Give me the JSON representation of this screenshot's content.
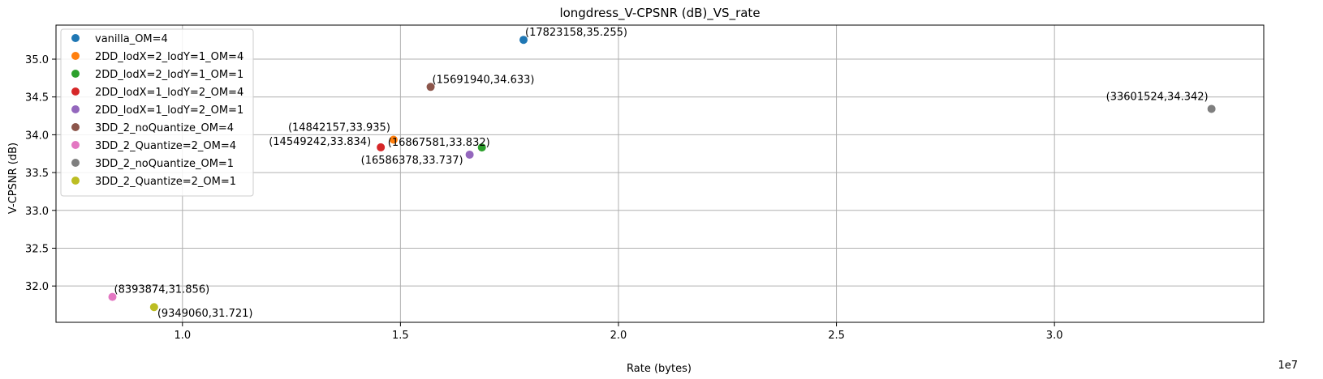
{
  "chart_data": {
    "type": "scatter",
    "title": "longdress_V-CPSNR (dB)_VS_rate",
    "xlabel": "Rate (bytes)",
    "ylabel": "V-CPSNR (dB)",
    "x_offset_label": "1e7",
    "xlim": [
      7100000,
      34800000
    ],
    "ylim": [
      31.52,
      35.45
    ],
    "grid": true,
    "legend_position": "upper-left",
    "x_ticks": [
      10000000,
      15000000,
      20000000,
      25000000,
      30000000
    ],
    "x_tick_labels": [
      "1.0",
      "1.5",
      "2.0",
      "2.5",
      "3.0"
    ],
    "y_ticks": [
      32.0,
      32.5,
      33.0,
      33.5,
      34.0,
      34.5,
      35.0
    ],
    "y_tick_labels": [
      "32.0",
      "32.5",
      "33.0",
      "33.5",
      "34.0",
      "34.5",
      "35.0"
    ],
    "series": [
      {
        "name": "vanilla_OM=4",
        "color": "#1f77b4",
        "x": 17823158,
        "y": 35.255,
        "annotation": "(17823158,35.255)",
        "ann_pos": "above-right"
      },
      {
        "name": "2DD_lodX=2_lodY=1_OM=4",
        "color": "#ff7f0e",
        "x": 14842157,
        "y": 33.935,
        "annotation": "(14842157,33.935)",
        "ann_pos": "above-left"
      },
      {
        "name": "2DD_lodX=2_lodY=1_OM=1",
        "color": "#2ca02c",
        "x": 16867581,
        "y": 33.832,
        "annotation": "(16867581,33.832)",
        "ann_pos": "above-left-near"
      },
      {
        "name": "2DD_lodX=1_lodY=2_OM=4",
        "color": "#d62728",
        "x": 14549242,
        "y": 33.834,
        "annotation": "(14549242,33.834)",
        "ann_pos": "above-left-far"
      },
      {
        "name": "2DD_lodX=1_lodY=2_OM=1",
        "color": "#9467bd",
        "x": 16586378,
        "y": 33.737,
        "annotation": "(16586378,33.737)",
        "ann_pos": "below-left"
      },
      {
        "name": "3DD_2_noQuantize_OM=4",
        "color": "#8c564b",
        "x": 15691940,
        "y": 34.633,
        "annotation": "(15691940,34.633)",
        "ann_pos": "above-right"
      },
      {
        "name": "3DD_2_Quantize=2_OM=4",
        "color": "#e377c2",
        "x": 8393874,
        "y": 31.856,
        "annotation": "(8393874,31.856)",
        "ann_pos": "above-right"
      },
      {
        "name": "3DD_2_noQuantize_OM=1",
        "color": "#7f7f7f",
        "x": 33601524,
        "y": 34.342,
        "annotation": "(33601524,34.342)",
        "ann_pos": "above-left"
      },
      {
        "name": "3DD_2_Quantize=2_OM=1",
        "color": "#bcbd22",
        "x": 9349060,
        "y": 31.721,
        "annotation": "(9349060,31.721)",
        "ann_pos": "below-right"
      }
    ]
  }
}
